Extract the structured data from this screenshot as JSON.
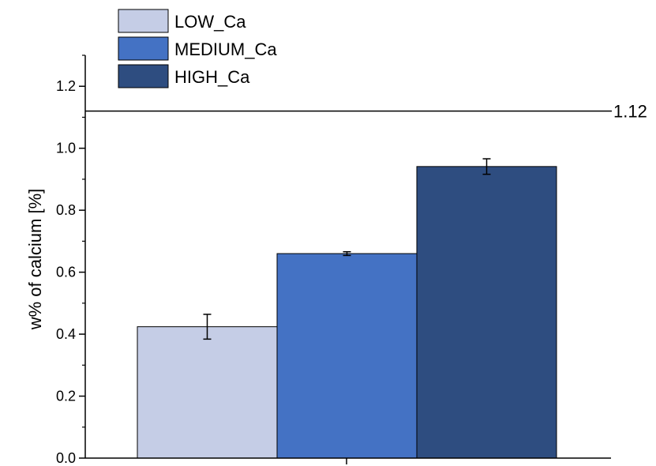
{
  "chart_data": {
    "type": "bar",
    "title": "",
    "xlabel": "",
    "ylabel": "w% of calcium [%]",
    "ylim": [
      0,
      1.3
    ],
    "yticks": [
      "0.0",
      "0.2",
      "0.4",
      "0.6",
      "0.8",
      "1.0",
      "1.2"
    ],
    "series": [
      {
        "name": "LOW_Ca",
        "value": 0.424,
        "error": 0.04,
        "color": "#c5cde6"
      },
      {
        "name": "MEDIUM_Ca",
        "value": 0.66,
        "error": 0.006,
        "color": "#4472c4"
      },
      {
        "name": "HIGH_Ca",
        "value": 0.941,
        "error": 0.025,
        "color": "#2e4d80"
      }
    ],
    "reference_line": {
      "value": 1.12,
      "label": "1.12"
    },
    "legend_position": "top-left",
    "grid": false
  }
}
